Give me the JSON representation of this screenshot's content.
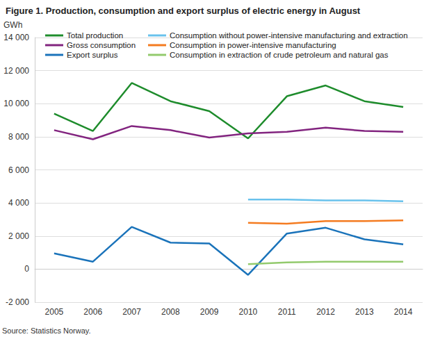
{
  "chart_data": {
    "type": "line",
    "title": "Figure 1. Production, consumption and export surplus of electric energy in August",
    "y_label": "GWh",
    "source": "Source: Statistics Norway.",
    "categories": [
      "2005",
      "2006",
      "2007",
      "2008",
      "2009",
      "2010",
      "2011",
      "2012",
      "2013",
      "2014"
    ],
    "series": [
      {
        "name": "Total production",
        "color": "#1e8c2c",
        "values": [
          9400,
          8350,
          11250,
          10150,
          9550,
          7900,
          10450,
          11100,
          10150,
          9800
        ]
      },
      {
        "name": "Gross consumption",
        "color": "#82247f",
        "values": [
          8400,
          7850,
          8650,
          8400,
          7950,
          8200,
          8300,
          8550,
          8350,
          8300
        ]
      },
      {
        "name": "Export surplus",
        "color": "#1a73ba",
        "values": [
          950,
          450,
          2550,
          1600,
          1550,
          -350,
          2150,
          2500,
          1800,
          1500
        ]
      },
      {
        "name": "Consumption without power-intensive manufacturing and extraction",
        "color": "#69c2ec",
        "values": [
          null,
          null,
          null,
          null,
          null,
          4200,
          4200,
          4150,
          4150,
          4100
        ]
      },
      {
        "name": "Consumption in power-intensive manufacturing",
        "color": "#f47b20",
        "values": [
          null,
          null,
          null,
          null,
          null,
          2800,
          2750,
          2900,
          2900,
          2950
        ]
      },
      {
        "name": "Consumption in extraction of crude petroleum and natural gas",
        "color": "#93ca6d",
        "values": [
          null,
          null,
          null,
          null,
          null,
          300,
          400,
          450,
          450,
          450
        ]
      }
    ],
    "ylim": [
      -2000,
      14000
    ],
    "yticks": [
      {
        "value": -2000,
        "label": "-2 000"
      },
      0,
      {
        "value": 2000,
        "label": "2 000"
      },
      {
        "value": 4000,
        "label": "4 000"
      },
      {
        "value": 6000,
        "label": "6 000"
      },
      {
        "value": 8000,
        "label": "8 000"
      },
      {
        "value": 10000,
        "label": "10 000"
      },
      {
        "value": 12000,
        "label": "12 000"
      },
      {
        "value": 14000,
        "label": "14 000"
      }
    ],
    "grid": true,
    "legend": "top"
  }
}
